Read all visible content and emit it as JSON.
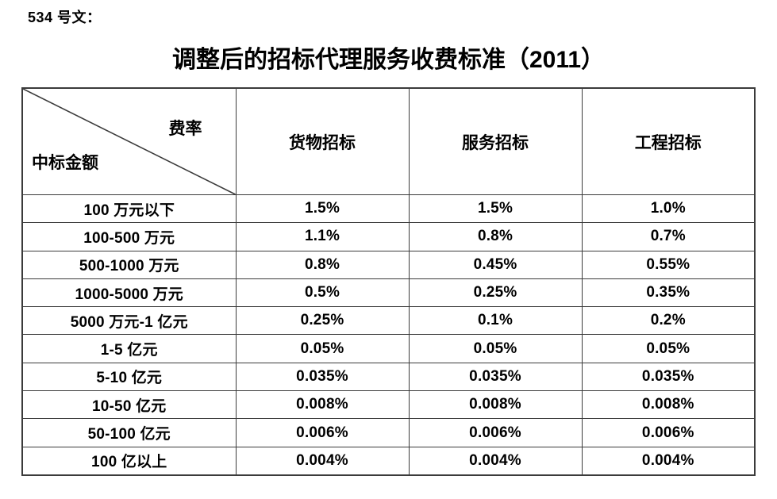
{
  "doc": {
    "ref_label": "534 号文：",
    "title": "调整后的招标代理服务收费标准（2011）"
  },
  "table": {
    "corner": {
      "top_right": "费率",
      "bottom_left": "中标金额"
    },
    "columns": [
      "货物招标",
      "服务招标",
      "工程招标"
    ],
    "rows": [
      {
        "label": "100 万元以下",
        "values": [
          "1.5%",
          "1.5%",
          "1.0%"
        ]
      },
      {
        "label": "100-500 万元",
        "values": [
          "1.1%",
          "0.8%",
          "0.7%"
        ]
      },
      {
        "label": "500-1000 万元",
        "values": [
          "0.8%",
          "0.45%",
          "0.55%"
        ]
      },
      {
        "label": "1000-5000 万元",
        "values": [
          "0.5%",
          "0.25%",
          "0.35%"
        ]
      },
      {
        "label": "5000 万元-1 亿元",
        "values": [
          "0.25%",
          "0.1%",
          "0.2%"
        ]
      },
      {
        "label": "1-5 亿元",
        "values": [
          "0.05%",
          "0.05%",
          "0.05%"
        ]
      },
      {
        "label": "5-10 亿元",
        "values": [
          "0.035%",
          "0.035%",
          "0.035%"
        ]
      },
      {
        "label": "10-50 亿元",
        "values": [
          "0.008%",
          "0.008%",
          "0.008%"
        ]
      },
      {
        "label": "50-100 亿元",
        "values": [
          "0.006%",
          "0.006%",
          "0.006%"
        ]
      },
      {
        "label": "100 亿以上",
        "values": [
          "0.004%",
          "0.004%",
          "0.004%"
        ]
      }
    ],
    "border_color": "#3b3b3b",
    "text_color": "#000000"
  }
}
